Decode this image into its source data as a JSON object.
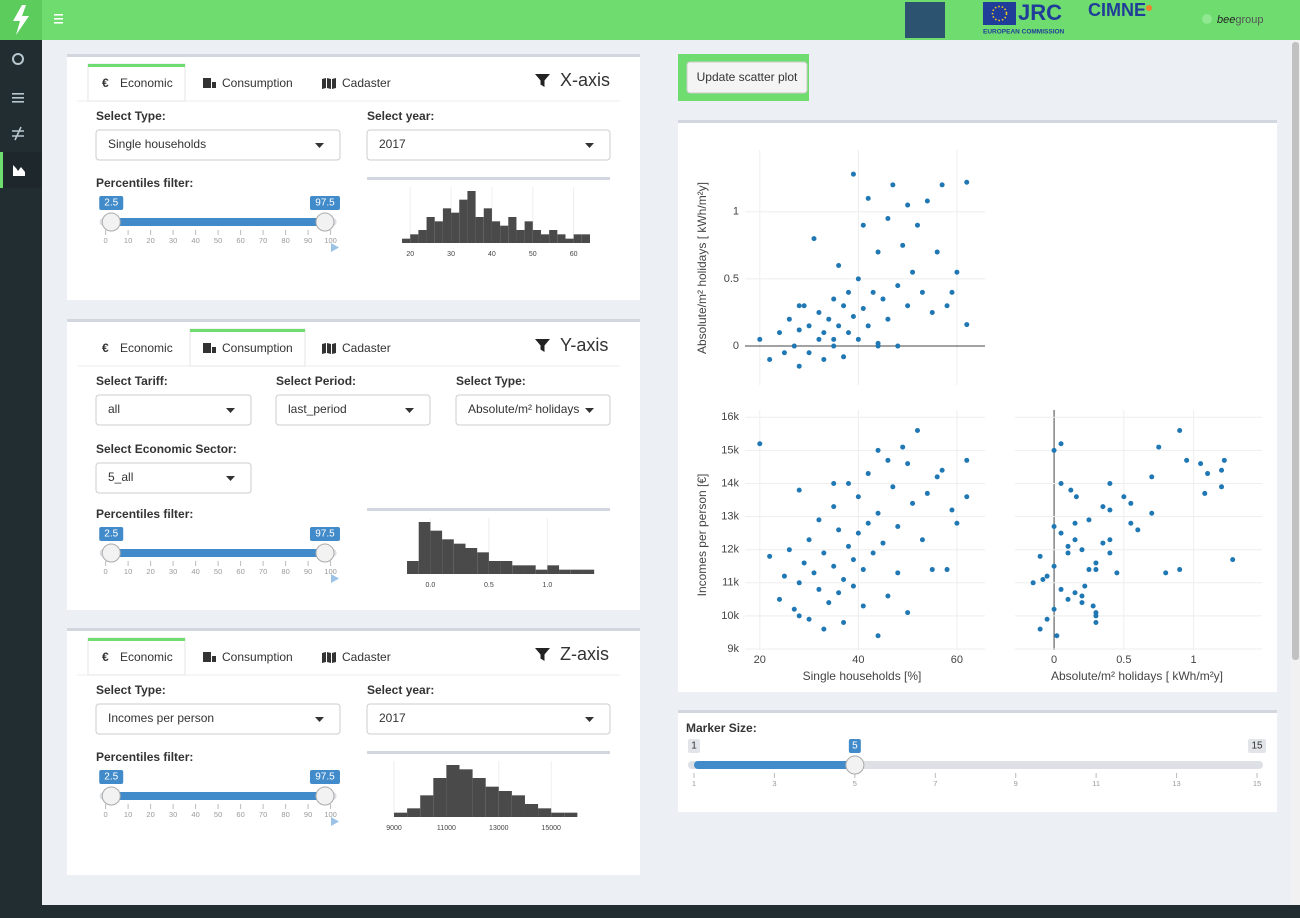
{
  "header": {
    "jrc": "JRC",
    "jrc_sub": "EUROPEAN COMMISSION",
    "cimne": "CIMNE",
    "bee": "bee",
    "group": "group"
  },
  "panels": [
    {
      "tabs": [
        {
          "icon": "€",
          "label": "Economic"
        },
        {
          "label": "Consumption"
        },
        {
          "label": "Cadaster"
        }
      ],
      "active_tab": 0,
      "title": "X-axis",
      "fields": [
        {
          "label": "Select Type:",
          "value": "Single households"
        },
        {
          "label": "Select year:",
          "value": "2017"
        }
      ],
      "percentiles": {
        "label": "Percentiles filter:",
        "min": 0,
        "max": 100,
        "from": 2.5,
        "to": 97.5,
        "ticks": [
          0,
          10,
          20,
          30,
          40,
          50,
          60,
          70,
          80,
          90,
          100
        ]
      },
      "histogram": {
        "bins": [
          18,
          20,
          22,
          24,
          26,
          28,
          30,
          32,
          34,
          36,
          38,
          40,
          42,
          44,
          46,
          48,
          50,
          52,
          54,
          56,
          58,
          60,
          62,
          64
        ],
        "counts": [
          1,
          2,
          3,
          6,
          5,
          8,
          7,
          10,
          12,
          6,
          8,
          5,
          4,
          6,
          3,
          5,
          3,
          2,
          3,
          2,
          1,
          2,
          2
        ],
        "xlim": [
          17.5,
          64
        ],
        "xticks": [
          20,
          30,
          40,
          50,
          60
        ],
        "color": "#4a4a4a"
      }
    },
    {
      "tabs": [
        {
          "icon": "€",
          "label": "Economic"
        },
        {
          "label": "Consumption"
        },
        {
          "label": "Cadaster"
        }
      ],
      "active_tab": 1,
      "title": "Y-axis",
      "fields": [
        {
          "label": "Select Tariff:",
          "value": "all"
        },
        {
          "label": "Select Period:",
          "value": "last_period"
        },
        {
          "label": "Select Type:",
          "value": "Absolute/m² holidays"
        },
        {
          "label": "Select Economic Sector:",
          "value": "5_all"
        }
      ],
      "percentiles": {
        "label": "Percentiles filter:",
        "min": 0,
        "max": 100,
        "from": 2.5,
        "to": 97.5,
        "ticks": [
          0,
          10,
          20,
          30,
          40,
          50,
          60,
          70,
          80,
          90,
          100
        ]
      },
      "histogram": {
        "bins": [
          -0.2,
          -0.1,
          0,
          0.1,
          0.2,
          0.3,
          0.4,
          0.5,
          0.6,
          0.7,
          0.8,
          0.9,
          1,
          1.1,
          1.2,
          1.3,
          1.4
        ],
        "counts": [
          3,
          12,
          10,
          8,
          7,
          6,
          5,
          3,
          3,
          2,
          2,
          1,
          2,
          1,
          1,
          1
        ],
        "xlim": [
          -0.26,
          1.45
        ],
        "xticks": [
          {
            "value": 0,
            "label": "0.0"
          },
          0.5,
          {
            "value": 1,
            "label": "1.0"
          }
        ],
        "color": "#4a4a4a"
      }
    },
    {
      "tabs": [
        {
          "icon": "€",
          "label": "Economic"
        },
        {
          "label": "Consumption"
        },
        {
          "label": "Cadaster"
        }
      ],
      "active_tab": 0,
      "title": "Z-axis",
      "fields": [
        {
          "label": "Select Type:",
          "value": "Incomes per person"
        },
        {
          "label": "Select year:",
          "value": "2017"
        }
      ],
      "percentiles": {
        "label": "Percentiles filter:",
        "min": 0,
        "max": 100,
        "from": 2.5,
        "to": 97.5,
        "ticks": [
          0,
          10,
          20,
          30,
          40,
          50,
          60,
          70,
          80,
          90,
          100
        ]
      },
      "histogram": {
        "bins": [
          9000,
          9500,
          10000,
          10500,
          11000,
          11500,
          12000,
          12500,
          13000,
          13500,
          14000,
          14500,
          15000,
          15500,
          16000
        ],
        "counts": [
          1,
          2,
          5,
          9,
          12,
          11,
          9,
          7,
          6,
          5,
          3,
          2,
          1,
          1
        ],
        "xlim": [
          8770,
          16750
        ],
        "xticks": [
          9000,
          11000,
          13000,
          15000
        ],
        "color": "#4a4a4a"
      }
    }
  ],
  "update_button": "Update scatter plot",
  "scatter": {
    "x_title": "Single households [%]",
    "y_title": "Absolute/m² holidays [ kWh/m²y]",
    "z_title": "Incomes per person [€]",
    "color": "#1f77b4",
    "x": [
      20,
      22,
      24,
      25,
      26,
      27,
      28,
      28,
      29,
      30,
      30,
      31,
      32,
      32,
      33,
      33,
      34,
      35,
      35,
      36,
      36,
      37,
      37,
      38,
      38,
      39,
      39,
      40,
      40,
      41,
      41,
      42,
      42,
      43,
      44,
      44,
      45,
      46,
      46,
      47,
      48,
      48,
      49,
      50,
      50,
      51,
      52,
      53,
      54,
      55,
      56,
      57,
      58,
      59,
      60,
      62,
      62,
      44,
      35,
      28
    ],
    "y": [
      0.05,
      -0.1,
      0.1,
      -0.05,
      0.2,
      0,
      -0.15,
      0.12,
      0.3,
      -0.05,
      0.15,
      0.8,
      0.05,
      0.25,
      -0.1,
      0.1,
      0.2,
      0,
      0.35,
      0.15,
      0.6,
      -0.08,
      0.3,
      0.1,
      0.4,
      0.22,
      1.28,
      0.05,
      0.5,
      0.9,
      0.28,
      0.15,
      1.1,
      0.4,
      0.02,
      0.7,
      0.35,
      0.95,
      0.2,
      1.2,
      0.45,
      0,
      0.75,
      0.3,
      1.05,
      0.55,
      0.9,
      0.4,
      1.08,
      0.25,
      0.7,
      1.2,
      0.3,
      0.4,
      0.55,
      1.22,
      0.16,
      0,
      0.05,
      0.3
    ],
    "z": [
      15200,
      11800,
      10500,
      11200,
      12000,
      10200,
      11000,
      13800,
      11600,
      9900,
      12300,
      11300,
      10800,
      12900,
      9600,
      11900,
      10400,
      11500,
      13300,
      10700,
      12600,
      11100,
      9800,
      12100,
      14000,
      10900,
      11700,
      12500,
      13600,
      11400,
      10300,
      12800,
      14300,
      11900,
      9400,
      13100,
      12200,
      14700,
      10600,
      13900,
      11300,
      12700,
      15100,
      10100,
      14600,
      13400,
      15600,
      12300,
      13700,
      11400,
      14200,
      14400,
      11400,
      13200,
      12800,
      14700,
      13600,
      15000,
      14000,
      10000
    ],
    "xlim": [
      17,
      65.7
    ],
    "ylim": [
      -0.29,
      1.46
    ],
    "zlim": [
      8970,
      16220
    ],
    "y_as_x_lim": [
      -0.28,
      1.49
    ],
    "xticks": [
      20,
      40,
      60
    ],
    "yticks": [
      0,
      0.5,
      1
    ],
    "zticks": [
      {
        "value": 9000,
        "label": "9k"
      },
      {
        "value": 10000,
        "label": "10k"
      },
      {
        "value": 11000,
        "label": "11k"
      },
      {
        "value": 12000,
        "label": "12k"
      },
      {
        "value": 13000,
        "label": "13k"
      },
      {
        "value": 14000,
        "label": "14k"
      },
      {
        "value": 15000,
        "label": "15k"
      },
      {
        "value": 16000,
        "label": "16k"
      }
    ]
  },
  "marker_size": {
    "label": "Marker Size:",
    "min": 1,
    "max": 15,
    "value": 5,
    "ticks": [
      1,
      3,
      5,
      7,
      9,
      11,
      13,
      15
    ]
  }
}
